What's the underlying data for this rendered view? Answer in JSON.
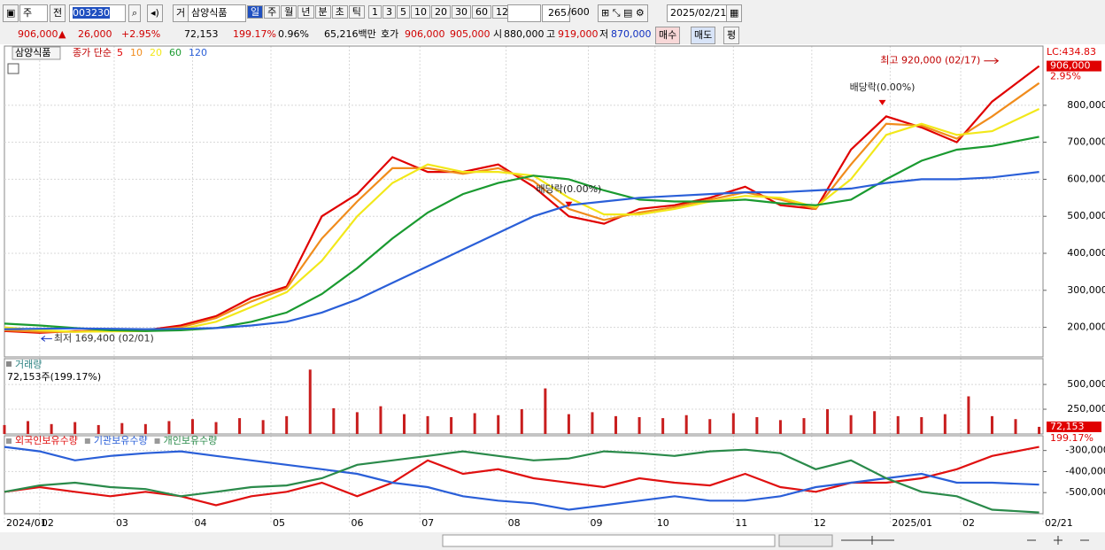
{
  "toolbar": {
    "period_type": "주",
    "prev": "전",
    "code": "003230",
    "market": "거",
    "name": "삼양식품",
    "periods": [
      "일",
      "주",
      "월",
      "년",
      "분",
      "초",
      "틱"
    ],
    "intervals": [
      "1",
      "3",
      "5",
      "10",
      "20",
      "30",
      "60",
      "120"
    ],
    "count": "265",
    "max": "/600",
    "date": "2025/02/21"
  },
  "quote": {
    "price": "906,000",
    "arrow": "▲",
    "change": "26,000",
    "change_pct": "+2.95%",
    "volume": "72,153",
    "volume_ratio": "199.17%",
    "turnover": "0.96%",
    "amount": "65,216백만",
    "ask_label": "호가",
    "ask": "906,000",
    "bid": "905,000",
    "open_label": "시",
    "open": "880,000",
    "high_label": "고",
    "high": "919,000",
    "low_label": "저",
    "low": "870,000",
    "buy": "매수",
    "sell": "매도",
    "avg": "평"
  },
  "chart_data": [
    {
      "type": "line",
      "legend_name": "삼양식품",
      "ma_label": "종가 단순",
      "lc": "LC:434.83",
      "x": [
        0,
        9,
        18,
        27,
        36,
        45,
        54,
        63,
        72,
        81,
        90,
        99,
        108,
        117,
        126,
        135,
        144,
        153,
        162,
        171,
        180,
        189,
        198,
        207,
        216,
        225,
        234,
        243,
        252,
        264
      ],
      "xlim": [
        0,
        265
      ],
      "ylim": [
        120000,
        960000
      ],
      "yticks": [
        {
          "value": 200000,
          "label": "200,000"
        },
        {
          "value": 300000,
          "label": "300,000"
        },
        {
          "value": 400000,
          "label": "400,000"
        },
        {
          "value": 500000,
          "label": "500,000"
        },
        {
          "value": 600000,
          "label": "600,000"
        },
        {
          "value": 700000,
          "label": "700,000"
        },
        {
          "value": 800000,
          "label": "800,000"
        }
      ],
      "series": [
        {
          "name": "5",
          "color": "#e00000",
          "values": [
            190000,
            185000,
            190000,
            190000,
            192000,
            205000,
            230000,
            280000,
            310000,
            500000,
            560000,
            660000,
            620000,
            620000,
            640000,
            580000,
            500000,
            480000,
            520000,
            530000,
            550000,
            580000,
            530000,
            520000,
            680000,
            770000,
            740000,
            700000,
            810000,
            906000
          ]
        },
        {
          "name": "10",
          "color": "#f08c1c",
          "values": [
            192000,
            188000,
            188000,
            190000,
            191000,
            200000,
            225000,
            270000,
            305000,
            440000,
            540000,
            630000,
            630000,
            615000,
            630000,
            595000,
            520000,
            490000,
            510000,
            525000,
            545000,
            565000,
            545000,
            520000,
            640000,
            750000,
            745000,
            710000,
            770000,
            860000
          ]
        },
        {
          "name": "20",
          "color": "#f2e81a",
          "values": [
            200000,
            192000,
            188000,
            189000,
            190000,
            195000,
            215000,
            255000,
            295000,
            380000,
            500000,
            590000,
            640000,
            620000,
            620000,
            610000,
            550000,
            505000,
            505000,
            520000,
            540000,
            555000,
            550000,
            525000,
            600000,
            720000,
            750000,
            720000,
            730000,
            790000
          ]
        },
        {
          "name": "60",
          "color": "#1a9a30",
          "values": [
            210000,
            205000,
            198000,
            192000,
            190000,
            192000,
            198000,
            215000,
            240000,
            290000,
            360000,
            440000,
            510000,
            560000,
            590000,
            610000,
            600000,
            570000,
            545000,
            540000,
            540000,
            545000,
            535000,
            530000,
            545000,
            600000,
            650000,
            680000,
            690000,
            715000
          ]
        },
        {
          "name": "120",
          "color": "#2a5fd8",
          "values": [
            195000,
            196000,
            197000,
            196000,
            195000,
            196000,
            198000,
            205000,
            215000,
            240000,
            275000,
            320000,
            365000,
            410000,
            455000,
            500000,
            530000,
            540000,
            550000,
            555000,
            560000,
            565000,
            565000,
            570000,
            575000,
            590000,
            600000,
            600000,
            605000,
            620000
          ]
        }
      ],
      "max_note": {
        "text": "최고 920,000 (02/17)",
        "x": 254,
        "y": 920000
      },
      "min_note": {
        "text": "최저 169,400 (02/01)",
        "x": 9,
        "y": 169400
      },
      "dividends": [
        {
          "text": "배당락(0.00%)",
          "x": 224,
          "y": 800000
        },
        {
          "text": "배당락(0.00%)",
          "x": 144,
          "y": 525000
        }
      ],
      "last": {
        "value": 906000,
        "label": "906,000",
        "change": "2.95%"
      }
    },
    {
      "type": "bar",
      "title": "거래량",
      "subtitle": "72,153주(199.17%)",
      "color": "#c81e1e",
      "x": [
        0,
        6,
        12,
        18,
        24,
        30,
        36,
        42,
        48,
        54,
        60,
        66,
        72,
        78,
        84,
        90,
        96,
        102,
        108,
        114,
        120,
        126,
        132,
        138,
        144,
        150,
        156,
        162,
        168,
        174,
        180,
        186,
        192,
        198,
        204,
        210,
        216,
        222,
        228,
        234,
        240,
        246,
        252,
        258,
        264
      ],
      "values": [
        90000,
        130000,
        100000,
        120000,
        90000,
        110000,
        100000,
        130000,
        150000,
        120000,
        160000,
        140000,
        180000,
        650000,
        260000,
        220000,
        280000,
        200000,
        180000,
        170000,
        210000,
        190000,
        250000,
        460000,
        200000,
        220000,
        180000,
        170000,
        160000,
        190000,
        150000,
        210000,
        170000,
        140000,
        160000,
        250000,
        190000,
        230000,
        180000,
        170000,
        200000,
        380000,
        180000,
        150000,
        72153
      ],
      "xlim": [
        0,
        265
      ],
      "ylim": [
        0,
        760000
      ],
      "yticks": [
        {
          "value": 250000,
          "label": "250,000"
        },
        {
          "value": 500000,
          "label": "500,000"
        }
      ],
      "last": {
        "value": 72153,
        "label": "72,153",
        "ratio": "199.17%"
      }
    },
    {
      "type": "line",
      "x": [
        0,
        9,
        18,
        27,
        36,
        45,
        54,
        63,
        72,
        81,
        90,
        99,
        108,
        117,
        126,
        135,
        144,
        153,
        162,
        171,
        180,
        189,
        198,
        207,
        216,
        225,
        234,
        243,
        252,
        264
      ],
      "xlim": [
        0,
        265
      ],
      "ylim": [
        -600000,
        -230000
      ],
      "xticks": [
        {
          "value": 0,
          "label": "2024/01"
        },
        {
          "value": 9,
          "label": "02"
        },
        {
          "value": 28,
          "label": "03"
        },
        {
          "value": 48,
          "label": "04"
        },
        {
          "value": 68,
          "label": "05"
        },
        {
          "value": 88,
          "label": "06"
        },
        {
          "value": 106,
          "label": "07"
        },
        {
          "value": 128,
          "label": "08"
        },
        {
          "value": 149,
          "label": "09"
        },
        {
          "value": 166,
          "label": "10"
        },
        {
          "value": 186,
          "label": "11"
        },
        {
          "value": 206,
          "label": "12"
        },
        {
          "value": 226,
          "label": "2025/01"
        },
        {
          "value": 244,
          "label": "02"
        },
        {
          "value": 265,
          "label": "02/21"
        }
      ],
      "yticks": [
        {
          "value": -300000,
          "label": "-300,000"
        },
        {
          "value": -400000,
          "label": "-400,000"
        },
        {
          "value": -500000,
          "label": "-500,000"
        }
      ],
      "series": [
        {
          "name": "외국인보유수량",
          "color": "#e01010",
          "values": [
            -496000,
            -474000,
            -496000,
            -517000,
            -496000,
            -517000,
            -560000,
            -517000,
            -496000,
            -453000,
            -517000,
            -453000,
            -347000,
            -411000,
            -389000,
            -432000,
            -453000,
            -474000,
            -432000,
            -453000,
            -466000,
            -411000,
            -474000,
            -496000,
            -453000,
            -453000,
            -432000,
            -389000,
            -326000,
            -283000
          ]
        },
        {
          "name": "기관보유수량",
          "color": "#2a5fd8",
          "values": [
            -283000,
            -304000,
            -347000,
            -326000,
            -313000,
            -304000,
            -326000,
            -347000,
            -368000,
            -389000,
            -411000,
            -453000,
            -474000,
            -517000,
            -538000,
            -551000,
            -581000,
            -560000,
            -538000,
            -517000,
            -538000,
            -538000,
            -517000,
            -474000,
            -453000,
            -432000,
            -411000,
            -453000,
            -453000,
            -462000
          ]
        },
        {
          "name": "개인보유수량",
          "color": "#2a8a4a",
          "values": [
            -496000,
            -466000,
            -453000,
            -474000,
            -483000,
            -517000,
            -496000,
            -474000,
            -466000,
            -432000,
            -368000,
            -347000,
            -326000,
            -304000,
            -326000,
            -347000,
            -338000,
            -304000,
            -313000,
            -326000,
            -304000,
            -296000,
            -313000,
            -389000,
            -347000,
            -432000,
            -496000,
            -517000,
            -581000,
            -594000
          ]
        }
      ]
    }
  ]
}
